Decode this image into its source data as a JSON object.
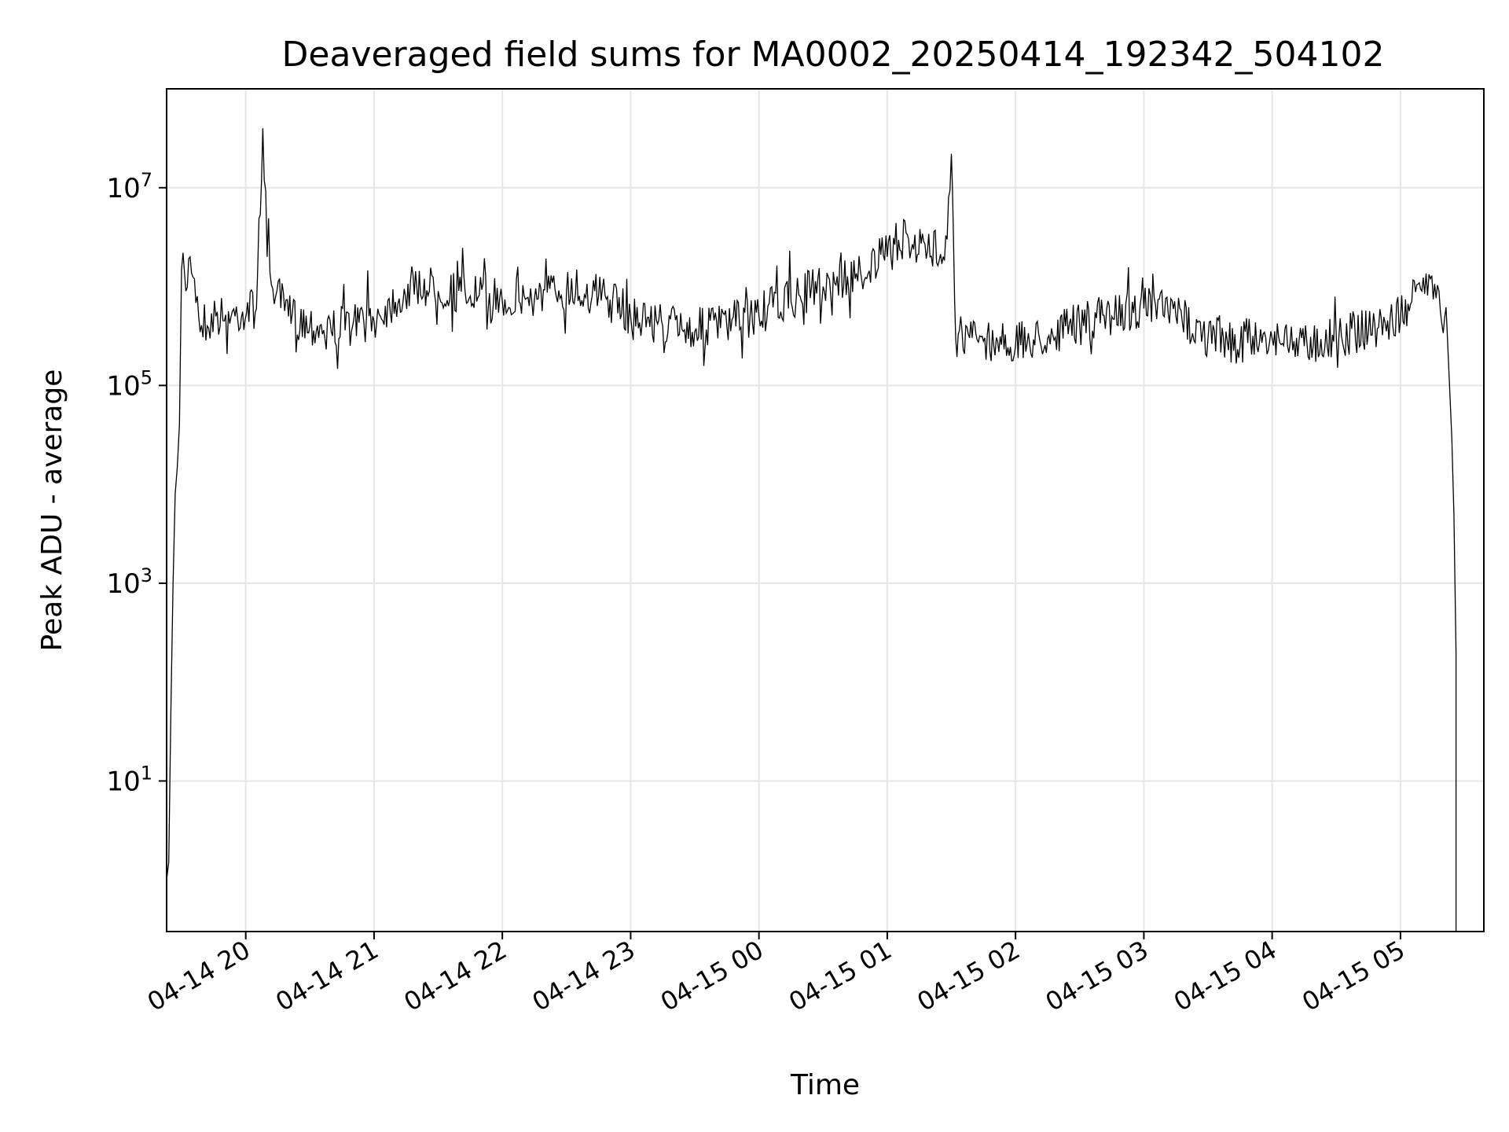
{
  "chart_data": {
    "type": "line",
    "title": "Deaveraged field sums for MA0002_20250414_192342_504102",
    "xlabel": "Time",
    "ylabel": "Peak ADU - average",
    "yscale": "log",
    "ylim": [
      0.3,
      100000000
    ],
    "xlim": [
      "2025-04-14 19:23",
      "2025-04-15 05:39"
    ],
    "grid": true,
    "line_color": "#000000",
    "x_ticks": [
      {
        "value": "2025-04-14 20:00",
        "label": "04-14 20"
      },
      {
        "value": "2025-04-14 21:00",
        "label": "04-14 21"
      },
      {
        "value": "2025-04-14 22:00",
        "label": "04-14 22"
      },
      {
        "value": "2025-04-14 23:00",
        "label": "04-14 23"
      },
      {
        "value": "2025-04-15 00:00",
        "label": "04-15 00"
      },
      {
        "value": "2025-04-15 01:00",
        "label": "04-15 01"
      },
      {
        "value": "2025-04-15 02:00",
        "label": "04-15 02"
      },
      {
        "value": "2025-04-15 03:00",
        "label": "04-15 03"
      },
      {
        "value": "2025-04-15 04:00",
        "label": "04-15 04"
      },
      {
        "value": "2025-04-15 05:00",
        "label": "04-15 05"
      }
    ],
    "y_ticks": [
      {
        "value": 10,
        "base": "10",
        "exp": "1"
      },
      {
        "value": 1000,
        "base": "10",
        "exp": "3"
      },
      {
        "value": 100000,
        "base": "10",
        "exp": "5"
      },
      {
        "value": 10000000,
        "base": "10",
        "exp": "7"
      }
    ],
    "series": [
      {
        "points": [
          [
            "2025-04-14 19:23",
            1.0
          ],
          [
            "2025-04-14 19:24",
            1.5
          ],
          [
            "2025-04-14 19:25",
            50
          ],
          [
            "2025-04-14 19:26",
            1000
          ],
          [
            "2025-04-14 19:27",
            8000
          ],
          [
            "2025-04-14 19:28",
            15000
          ],
          [
            "2025-04-14 19:29",
            40000
          ],
          [
            "2025-04-14 19:30",
            1500000
          ],
          [
            "2025-04-14 19:32",
            900000
          ],
          [
            "2025-04-14 19:34",
            2000000
          ],
          [
            "2025-04-14 19:36",
            1200000
          ],
          [
            "2025-04-14 19:38",
            500000
          ],
          [
            "2025-04-14 19:42",
            400000
          ],
          [
            "2025-04-14 19:46",
            500000
          ],
          [
            "2025-04-14 19:50",
            450000
          ],
          [
            "2025-04-14 19:55",
            500000
          ],
          [
            "2025-04-14 20:05",
            600000
          ],
          [
            "2025-04-14 20:08",
            40000000
          ],
          [
            "2025-04-14 20:10",
            2000000
          ],
          [
            "2025-04-14 20:14",
            800000
          ],
          [
            "2025-04-14 20:20",
            500000
          ],
          [
            "2025-04-14 20:30",
            400000
          ],
          [
            "2025-04-14 20:40",
            350000
          ],
          [
            "2025-04-14 20:50",
            400000
          ],
          [
            "2025-04-14 21:00",
            450000
          ],
          [
            "2025-04-14 21:10",
            700000
          ],
          [
            "2025-04-14 21:20",
            1000000
          ],
          [
            "2025-04-14 21:30",
            900000
          ],
          [
            "2025-04-14 21:45",
            800000
          ],
          [
            "2025-04-14 22:00",
            700000
          ],
          [
            "2025-04-14 22:15",
            750000
          ],
          [
            "2025-04-14 22:30",
            900000
          ],
          [
            "2025-04-14 22:45",
            800000
          ],
          [
            "2025-04-14 23:00",
            500000
          ],
          [
            "2025-04-14 23:15",
            400000
          ],
          [
            "2025-04-14 23:30",
            350000
          ],
          [
            "2025-04-14 23:45",
            400000
          ],
          [
            "2025-04-15 00:00",
            500000
          ],
          [
            "2025-04-15 00:15",
            700000
          ],
          [
            "2025-04-15 00:30",
            1000000
          ],
          [
            "2025-04-15 00:45",
            1200000
          ],
          [
            "2025-04-15 01:00",
            2000000
          ],
          [
            "2025-04-15 01:10",
            3000000
          ],
          [
            "2025-04-15 01:20",
            2000000
          ],
          [
            "2025-04-15 01:28",
            3000000
          ],
          [
            "2025-04-15 01:30",
            22000000
          ],
          [
            "2025-04-15 01:31",
            3000000
          ],
          [
            "2025-04-15 01:32",
            300000
          ],
          [
            "2025-04-15 01:45",
            280000
          ],
          [
            "2025-04-15 02:00",
            250000
          ],
          [
            "2025-04-15 02:15",
            300000
          ],
          [
            "2025-04-15 02:30",
            400000
          ],
          [
            "2025-04-15 02:45",
            500000
          ],
          [
            "2025-04-15 03:00",
            600000
          ],
          [
            "2025-04-15 03:15",
            500000
          ],
          [
            "2025-04-15 03:30",
            300000
          ],
          [
            "2025-04-15 03:45",
            250000
          ],
          [
            "2025-04-15 04:00",
            300000
          ],
          [
            "2025-04-15 04:15",
            250000
          ],
          [
            "2025-04-15 04:30",
            300000
          ],
          [
            "2025-04-15 04:45",
            350000
          ],
          [
            "2025-04-15 05:00",
            450000
          ],
          [
            "2025-04-15 05:10",
            900000
          ],
          [
            "2025-04-15 05:14",
            1200000
          ],
          [
            "2025-04-15 05:18",
            900000
          ],
          [
            "2025-04-15 05:22",
            300000
          ],
          [
            "2025-04-15 05:24",
            30000
          ],
          [
            "2025-04-15 05:25",
            5000
          ],
          [
            "2025-04-15 05:26",
            200
          ],
          [
            "2025-04-15 05:26",
            0.3
          ]
        ]
      }
    ]
  }
}
